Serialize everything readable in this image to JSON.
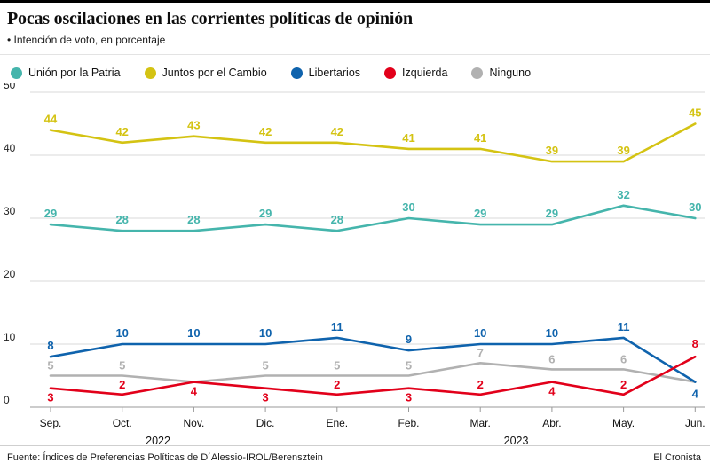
{
  "header": {
    "title": "Pocas oscilaciones en las corrientes políticas de opinión",
    "subtitle": "• Intención de voto, en porcentaje"
  },
  "chart_data": {
    "type": "line",
    "categories": [
      "Sep.",
      "Oct.",
      "Nov.",
      "Dic.",
      "Ene.",
      "Feb.",
      "Mar.",
      "Abr.",
      "May.",
      "Jun."
    ],
    "years": [
      {
        "label": "2022",
        "x_index": 1.5
      },
      {
        "label": "2023",
        "x_index": 6.5
      }
    ],
    "series": [
      {
        "name": "Unión por la Patria",
        "color": "#45b5ac",
        "values": [
          29,
          28,
          28,
          29,
          28,
          30,
          29,
          29,
          32,
          30
        ]
      },
      {
        "name": "Juntos por el Cambio",
        "color": "#d4c313",
        "values": [
          44,
          42,
          43,
          42,
          42,
          41,
          41,
          39,
          39,
          45
        ]
      },
      {
        "name": "Libertarios",
        "color": "#0f63ad",
        "values": [
          8,
          10,
          10,
          10,
          11,
          9,
          10,
          10,
          11,
          4
        ]
      },
      {
        "name": "Izquierda",
        "color": "#e2001a",
        "values": [
          3,
          2,
          4,
          3,
          2,
          3,
          2,
          4,
          2,
          8
        ]
      },
      {
        "name": "Ninguno",
        "color": "#b1b1b1",
        "values": [
          5,
          5,
          4,
          5,
          5,
          5,
          7,
          6,
          6,
          4
        ],
        "hide_labels": [
          2,
          9
        ]
      }
    ],
    "yticks": [
      0,
      10,
      20,
      30,
      40,
      50
    ],
    "ylim": [
      0,
      50
    ],
    "grid": true,
    "legend_position": "top"
  },
  "footer": {
    "source": "Fuente: Índices de Preferencias Políticas de D´Alessio-IROL/Berensztein",
    "credit": "El Cronista"
  }
}
